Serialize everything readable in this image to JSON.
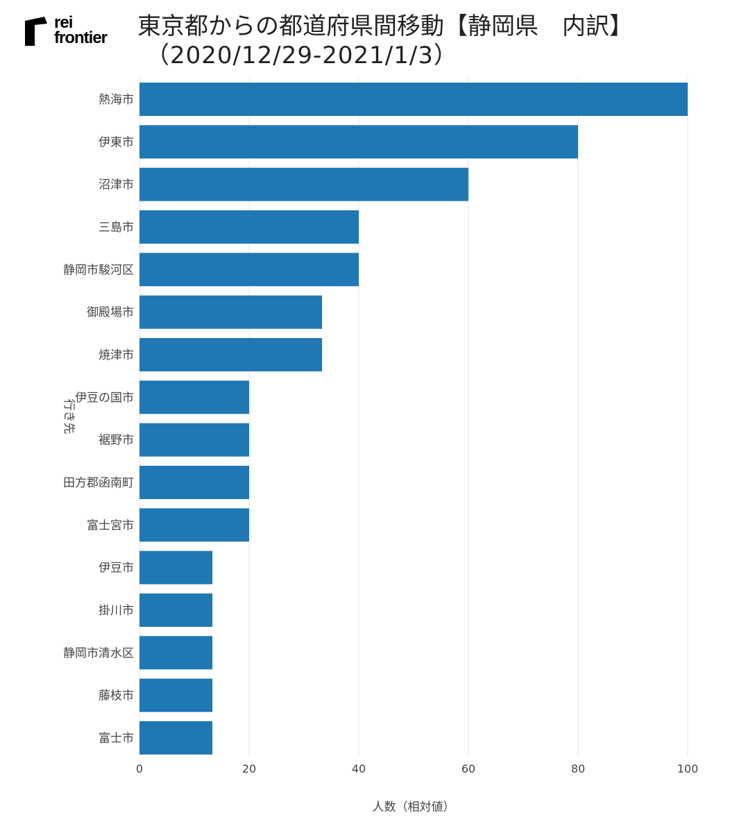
{
  "logo": {
    "line1": "rei",
    "line2": "frontier"
  },
  "header": {
    "title": "東京都からの都道府県間移動【静岡県　内訳】",
    "subtitle": "（2020/12/29-2021/1/3）"
  },
  "colors": {
    "bar": "#1f77b4",
    "grid": "#e6e6e6",
    "text": "#444444"
  },
  "chart_data": {
    "type": "bar",
    "orientation": "horizontal",
    "xlabel": "人数（相対値）",
    "ylabel": "行き先",
    "xlim": [
      0,
      100
    ],
    "xticks": [
      0,
      20,
      40,
      60,
      80,
      100
    ],
    "grid": true,
    "categories": [
      "熱海市",
      "伊東市",
      "沼津市",
      "三島市",
      "静岡市駿河区",
      "御殿場市",
      "焼津市",
      "伊豆の国市",
      "裾野市",
      "田方郡函南町",
      "富士宮市",
      "伊豆市",
      "掛川市",
      "静岡市清水区",
      "藤枝市",
      "富士市"
    ],
    "values": [
      100,
      80,
      60,
      40,
      40,
      33.3,
      33.3,
      20,
      20,
      20,
      20,
      13.3,
      13.3,
      13.3,
      13.3,
      13.3
    ]
  }
}
